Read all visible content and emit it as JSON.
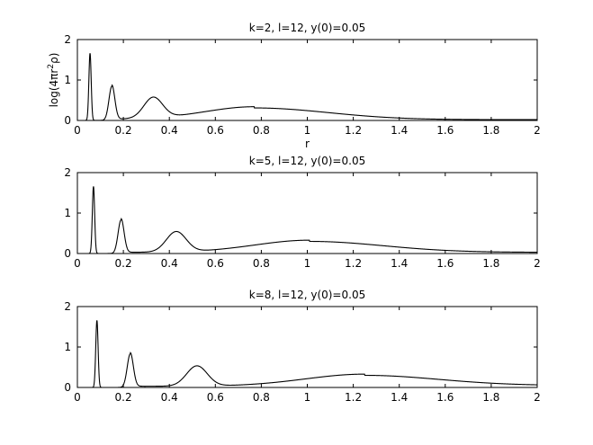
{
  "chart_data": [
    {
      "type": "line",
      "title": "k=2, l=12, y(0)=0.05",
      "xlabel": "r",
      "ylabel": "log(4πr",
      "ylabel_sup": "2",
      "ylabel_end": "ρ)",
      "xlim": [
        0,
        2
      ],
      "ylim": [
        0,
        2
      ],
      "xticks": [
        "0",
        "0.2",
        "0.4",
        "0.6",
        "0.8",
        "1",
        "1.2",
        "1.4",
        "1.6",
        "1.8",
        "2"
      ],
      "yticks": [
        "0",
        "1",
        "2"
      ],
      "grid": false,
      "peaks": [
        {
          "x": 0.055,
          "y": 1.66
        },
        {
          "x": 0.15,
          "y": 0.84
        },
        {
          "x": 0.33,
          "y": 0.51
        },
        {
          "x": 0.77,
          "y": 0.31
        }
      ],
      "tail_value_at_2": 0.02
    },
    {
      "type": "line",
      "title": "k=5, l=12, y(0)=0.05",
      "xlabel": "",
      "ylabel": "",
      "xlim": [
        0,
        2
      ],
      "ylim": [
        0,
        2
      ],
      "xticks": [
        "0",
        "0.2",
        "0.4",
        "0.6",
        "0.8",
        "1",
        "1.2",
        "1.4",
        "1.6",
        "1.8",
        "2"
      ],
      "yticks": [
        "0",
        "1",
        "2"
      ],
      "grid": false,
      "peaks": [
        {
          "x": 0.07,
          "y": 1.66
        },
        {
          "x": 0.19,
          "y": 0.83
        },
        {
          "x": 0.43,
          "y": 0.5
        },
        {
          "x": 1.01,
          "y": 0.3
        }
      ],
      "tail_value_at_2": 0.03
    },
    {
      "type": "line",
      "title": "k=8, l=12, y(0)=0.05",
      "xlabel": "",
      "ylabel": "",
      "xlim": [
        0,
        2
      ],
      "ylim": [
        0,
        2
      ],
      "xticks": [
        "0",
        "0.2",
        "0.4",
        "0.6",
        "0.8",
        "1",
        "1.2",
        "1.4",
        "1.6",
        "1.8",
        "2"
      ],
      "yticks": [
        "0",
        "1",
        "2"
      ],
      "grid": false,
      "peaks": [
        {
          "x": 0.085,
          "y": 1.66
        },
        {
          "x": 0.23,
          "y": 0.83
        },
        {
          "x": 0.52,
          "y": 0.5
        },
        {
          "x": 1.25,
          "y": 0.3
        }
      ],
      "tail_value_at_2": 0.05
    }
  ]
}
